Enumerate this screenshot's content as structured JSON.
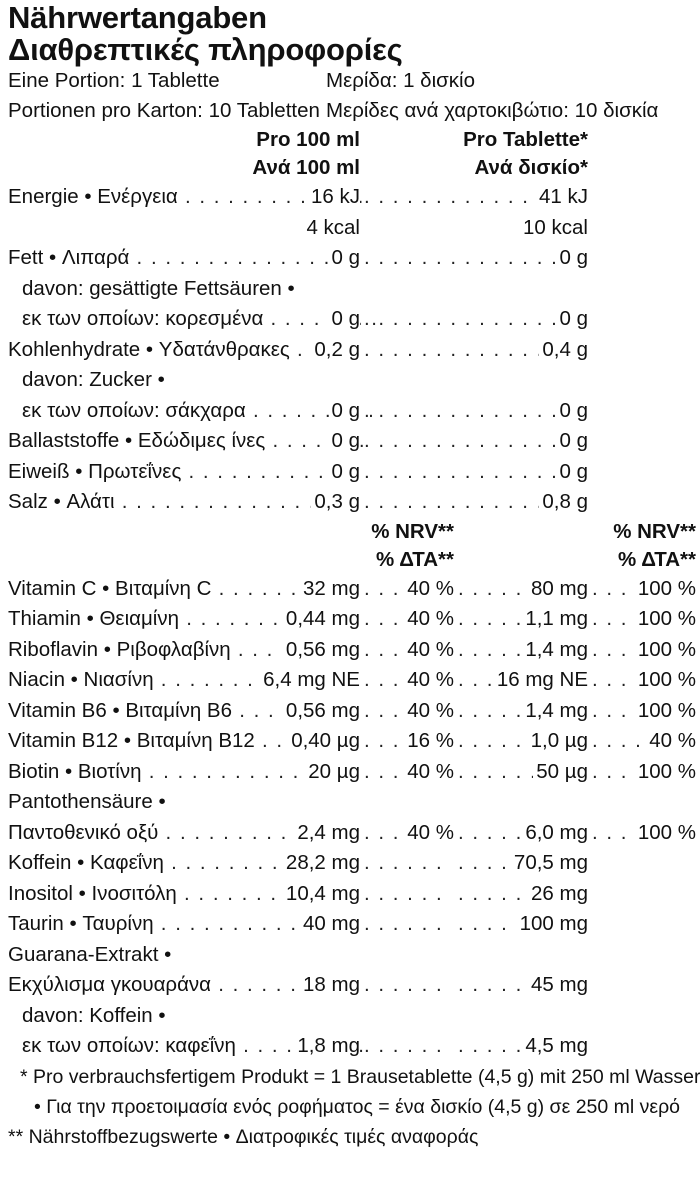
{
  "title_de": "Nährwertangaben",
  "title_el": "Διαθρεπτικές πληροφορίες",
  "portion": {
    "de": "Eine Portion: 1 Tablette",
    "el": "Μερίδα: 1 δισκίο"
  },
  "portions_per_box": {
    "de": "Portionen pro Karton: 10 Tabletten",
    "el": "Μερίδες ανά χαρτοκιβώτιο: 10 δισκία"
  },
  "header1": {
    "col1_de": "Pro 100 ml",
    "col1_el": "Ανά 100 ml",
    "col2_de": "Pro Tablette*",
    "col2_el": "Ανά δισκίο*"
  },
  "nutrients": [
    {
      "label": "Energie • Ενέργεια",
      "v1": "16 kJ",
      "v2": "41 kJ",
      "indent": false
    },
    {
      "label": "",
      "v1": "4 kcal",
      "v2": "10 kcal",
      "indent": false
    },
    {
      "label": "Fett • Λιπαρά",
      "v1": "0 g",
      "v2": "0 g",
      "indent": false
    },
    {
      "label": "davon: gesättigte Fettsäuren •",
      "v1": "",
      "v2": "",
      "indent": true,
      "nodots": true
    },
    {
      "label": "εκ των οποίων: κορεσμένα",
      "v1": "0 g",
      "v2": "0 g",
      "indent": true
    },
    {
      "label": "Kohlenhydrate • Υδατάνθρακες",
      "v1": "0,2 g",
      "v2": "0,4 g",
      "indent": false
    },
    {
      "label": "davon: Zucker •",
      "v1": "",
      "v2": "",
      "indent": true,
      "nodots": true
    },
    {
      "label": "εκ των οποίων: σάκχαρα",
      "v1": "0 g",
      "v2": "0 g",
      "indent": true
    },
    {
      "label": "Ballaststoffe • Εδώδιμες ίνες",
      "v1": "0 g",
      "v2": "0 g",
      "indent": false
    },
    {
      "label": "Eiweiß • Πρωτεΐνες",
      "v1": "0 g",
      "v2": "0 g",
      "indent": false
    },
    {
      "label": "Salz • Αλάτι",
      "v1": "0,3 g",
      "v2": "0,8 g",
      "indent": false
    }
  ],
  "header2": {
    "nrv": "% NRV**",
    "dta": "% ΔΤΑ**"
  },
  "vitamins": [
    {
      "label": "Vitamin C • Βιταμίνη C",
      "a": "32 mg",
      "b": "40 %",
      "c": "80 mg",
      "d": "100 %"
    },
    {
      "label": "Thiamin • Θειαμίνη",
      "a": "0,44 mg",
      "b": "40 %",
      "c": "1,1 mg",
      "d": "100 %"
    },
    {
      "label": "Riboflavin • Ριβοφλαβίνη",
      "a": "0,56 mg",
      "b": "40 %",
      "c": "1,4 mg",
      "d": "100 %"
    },
    {
      "label": "Niacin • Νιασίνη",
      "a": "6,4 mg NE",
      "b": "40 %",
      "c": "16 mg NE",
      "d": "100 %"
    },
    {
      "label": "Vitamin B6 • Βιταμίνη B6",
      "a": "0,56 mg",
      "b": "40 %",
      "c": "1,4 mg",
      "d": "100 %"
    },
    {
      "label": "Vitamin B12 • Βιταμίνη B12",
      "a": "0,40 µg",
      "b": "16 %",
      "c": "1,0 µg",
      "d": "40 %"
    },
    {
      "label": "Biotin • Βιοτίνη",
      "a": "20 µg",
      "b": "40 %",
      "c": "50 µg",
      "d": "100 %"
    },
    {
      "label": "Pantothensäure •",
      "a": "",
      "b": "",
      "c": "",
      "d": "",
      "nodots": true
    },
    {
      "label": "Παντοθενικό οξύ",
      "a": "2,4 mg",
      "b": "40 %",
      "c": "6,0 mg",
      "d": "100 %"
    },
    {
      "label": "Koffein • Καφεΐνη",
      "a": "28,2 mg",
      "b": "",
      "c": "70,5 mg",
      "d": ""
    },
    {
      "label": "Inositol • Ινοσιτόλη",
      "a": "10,4 mg",
      "b": "",
      "c": "26 mg",
      "d": ""
    },
    {
      "label": "Taurin • Ταυρίνη",
      "a": "40 mg",
      "b": "",
      "c": "100 mg",
      "d": ""
    },
    {
      "label": "Guarana-Extrakt •",
      "a": "",
      "b": "",
      "c": "",
      "d": "",
      "nodots": true
    },
    {
      "label": "Εκχύλισμα γκουαράνα",
      "a": "18 mg",
      "b": "",
      "c": "45 mg",
      "d": ""
    },
    {
      "label": "davon: Koffein •",
      "a": "",
      "b": "",
      "c": "",
      "d": "",
      "nodots": true,
      "indent": true
    },
    {
      "label": "εκ των οποίων: καφεΐνη",
      "a": "1,8 mg",
      "b": "",
      "c": "4,5 mg",
      "d": "",
      "indent": true
    }
  ],
  "footnotes": [
    "* Pro verbrauchsfertigem Produkt = 1 Brausetablette (4,5 g) mit 250 ml Wasser",
    "• Για την προετοιμασία ενός ροφήματος = ένα δισκίο (4,5 g) σε 250 ml νερό",
    "** Nährstoffbezugswerte • Διατροφικές τιμές αναφοράς"
  ]
}
